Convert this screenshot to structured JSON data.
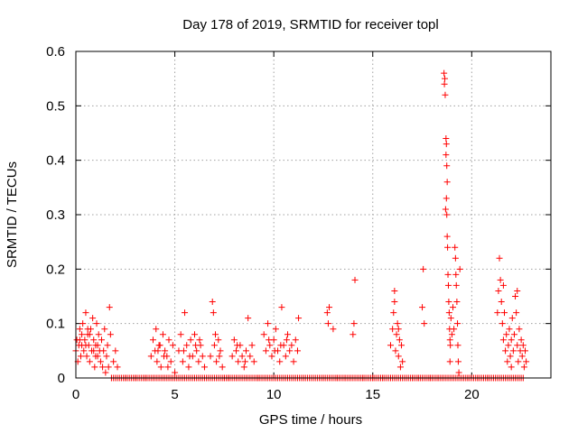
{
  "chart_data": {
    "type": "scatter",
    "title": "Day 178 of 2019, SRMTID for receiver topl",
    "xlabel": "GPS time / hours",
    "ylabel": "SRMTID / TECUs",
    "xlim": [
      0,
      24
    ],
    "ylim": [
      0,
      0.6
    ],
    "x_ticks": [
      0,
      5,
      10,
      15,
      20
    ],
    "x_tick_labels": [
      "0",
      "5",
      "10",
      "15",
      "20"
    ],
    "y_ticks": [
      0,
      0.1,
      0.2,
      0.3,
      0.4,
      0.5,
      0.6
    ],
    "y_tick_labels": [
      "0",
      "0.1",
      "0.2",
      "0.3",
      "0.4",
      "0.5",
      "0.6"
    ],
    "grid": true,
    "marker": "+",
    "color": "#ff0000",
    "series": [
      {
        "name": "SRMTID",
        "points": [
          [
            0.0,
            0.05
          ],
          [
            0.05,
            0.07
          ],
          [
            0.1,
            0.03
          ],
          [
            0.15,
            0.06
          ],
          [
            0.2,
            0.09
          ],
          [
            0.25,
            0.04
          ],
          [
            0.3,
            0.06
          ],
          [
            0.35,
            0.1
          ],
          [
            0.4,
            0.05
          ],
          [
            0.45,
            0.07
          ],
          [
            0.5,
            0.12
          ],
          [
            0.55,
            0.04
          ],
          [
            0.6,
            0.08
          ],
          [
            0.65,
            0.06
          ],
          [
            0.7,
            0.03
          ],
          [
            0.75,
            0.09
          ],
          [
            0.8,
            0.05
          ],
          [
            0.85,
            0.11
          ],
          [
            0.9,
            0.07
          ],
          [
            0.95,
            0.02
          ],
          [
            1.0,
            0.06
          ],
          [
            1.05,
            0.1
          ],
          [
            1.1,
            0.04
          ],
          [
            1.15,
            0.08
          ],
          [
            1.2,
            0.05
          ],
          [
            1.25,
            0.03
          ],
          [
            1.3,
            0.07
          ],
          [
            1.35,
            0.02
          ],
          [
            1.4,
            0.05
          ],
          [
            1.45,
            0.09
          ],
          [
            1.5,
            0.01
          ],
          [
            1.55,
            0.04
          ],
          [
            1.6,
            0.06
          ],
          [
            1.65,
            0.02
          ],
          [
            1.7,
            0.13
          ],
          [
            1.75,
            0.08
          ],
          [
            1.8,
            0.0
          ],
          [
            1.9,
            0.03
          ],
          [
            2.0,
            0.05
          ],
          [
            2.1,
            0.02
          ],
          [
            0.3,
            0.08
          ],
          [
            0.5,
            0.06
          ],
          [
            0.7,
            0.08
          ],
          [
            0.9,
            0.05
          ],
          [
            1.1,
            0.06
          ],
          [
            0.2,
            0.07
          ],
          [
            0.6,
            0.09
          ],
          [
            1.0,
            0.04
          ],
          [
            2.5,
            0.0
          ],
          [
            3.0,
            0.0
          ],
          [
            3.5,
            0.0
          ],
          [
            3.8,
            0.04
          ],
          [
            3.9,
            0.07
          ],
          [
            4.0,
            0.05
          ],
          [
            4.05,
            0.09
          ],
          [
            4.1,
            0.03
          ],
          [
            4.2,
            0.06
          ],
          [
            4.3,
            0.02
          ],
          [
            4.4,
            0.08
          ],
          [
            4.5,
            0.05
          ],
          [
            4.6,
            0.04
          ],
          [
            4.7,
            0.07
          ],
          [
            4.8,
            0.03
          ],
          [
            4.9,
            0.06
          ],
          [
            5.0,
            0.01
          ],
          [
            4.15,
            0.05
          ],
          [
            4.45,
            0.04
          ],
          [
            4.25,
            0.06
          ],
          [
            4.65,
            0.02
          ],
          [
            5.2,
            0.05
          ],
          [
            5.3,
            0.08
          ],
          [
            5.4,
            0.03
          ],
          [
            5.5,
            0.12
          ],
          [
            5.6,
            0.06
          ],
          [
            5.7,
            0.02
          ],
          [
            5.8,
            0.07
          ],
          [
            5.9,
            0.04
          ],
          [
            6.0,
            0.08
          ],
          [
            6.1,
            0.05
          ],
          [
            6.2,
            0.03
          ],
          [
            6.3,
            0.06
          ],
          [
            6.4,
            0.04
          ],
          [
            6.5,
            0.02
          ],
          [
            5.45,
            0.05
          ],
          [
            5.75,
            0.04
          ],
          [
            6.05,
            0.06
          ],
          [
            6.25,
            0.07
          ],
          [
            6.8,
            0.04
          ],
          [
            6.9,
            0.14
          ],
          [
            6.95,
            0.12
          ],
          [
            7.0,
            0.06
          ],
          [
            7.1,
            0.03
          ],
          [
            7.2,
            0.07
          ],
          [
            7.3,
            0.05
          ],
          [
            7.4,
            0.02
          ],
          [
            7.05,
            0.08
          ],
          [
            7.25,
            0.04
          ],
          [
            7.5,
            0.0
          ],
          [
            7.7,
            0.0
          ],
          [
            7.9,
            0.04
          ],
          [
            8.0,
            0.07
          ],
          [
            8.1,
            0.05
          ],
          [
            8.2,
            0.03
          ],
          [
            8.3,
            0.06
          ],
          [
            8.4,
            0.04
          ],
          [
            8.5,
            0.02
          ],
          [
            8.6,
            0.05
          ],
          [
            8.7,
            0.11
          ],
          [
            8.8,
            0.04
          ],
          [
            8.9,
            0.06
          ],
          [
            9.0,
            0.03
          ],
          [
            8.15,
            0.06
          ],
          [
            8.55,
            0.03
          ],
          [
            9.2,
            0.0
          ],
          [
            9.5,
            0.08
          ],
          [
            9.6,
            0.05
          ],
          [
            9.7,
            0.1
          ],
          [
            9.8,
            0.06
          ],
          [
            9.9,
            0.04
          ],
          [
            10.0,
            0.07
          ],
          [
            10.1,
            0.09
          ],
          [
            10.2,
            0.05
          ],
          [
            10.3,
            0.03
          ],
          [
            10.4,
            0.13
          ],
          [
            10.5,
            0.06
          ],
          [
            10.6,
            0.04
          ],
          [
            10.7,
            0.08
          ],
          [
            10.8,
            0.05
          ],
          [
            10.9,
            0.06
          ],
          [
            11.0,
            0.03
          ],
          [
            11.1,
            0.07
          ],
          [
            11.2,
            0.05
          ],
          [
            11.25,
            0.11
          ],
          [
            9.75,
            0.07
          ],
          [
            10.05,
            0.05
          ],
          [
            10.35,
            0.06
          ],
          [
            10.65,
            0.07
          ],
          [
            11.5,
            0.0
          ],
          [
            12.0,
            0.0
          ],
          [
            12.5,
            0.0
          ],
          [
            12.7,
            0.12
          ],
          [
            12.75,
            0.1
          ],
          [
            12.8,
            0.13
          ],
          [
            13.0,
            0.09
          ],
          [
            13.2,
            0.0
          ],
          [
            13.6,
            0.0
          ],
          [
            14.0,
            0.08
          ],
          [
            14.05,
            0.1
          ],
          [
            14.1,
            0.18
          ],
          [
            14.5,
            0.0
          ],
          [
            15.0,
            0.0
          ],
          [
            15.5,
            0.0
          ],
          [
            15.9,
            0.06
          ],
          [
            16.0,
            0.09
          ],
          [
            16.05,
            0.12
          ],
          [
            16.1,
            0.16
          ],
          [
            16.15,
            0.05
          ],
          [
            16.2,
            0.08
          ],
          [
            16.25,
            0.1
          ],
          [
            16.3,
            0.04
          ],
          [
            16.35,
            0.07
          ],
          [
            16.4,
            0.02
          ],
          [
            16.45,
            0.06
          ],
          [
            16.5,
            0.03
          ],
          [
            16.1,
            0.14
          ],
          [
            16.3,
            0.09
          ],
          [
            16.7,
            0.0
          ],
          [
            17.0,
            0.0
          ],
          [
            17.3,
            0.0
          ],
          [
            17.5,
            0.13
          ],
          [
            17.55,
            0.2
          ],
          [
            17.6,
            0.1
          ],
          [
            17.9,
            0.0
          ],
          [
            18.3,
            0.0
          ],
          [
            18.6,
            0.56
          ],
          [
            18.62,
            0.54
          ],
          [
            18.64,
            0.55
          ],
          [
            18.66,
            0.52
          ],
          [
            18.7,
            0.44
          ],
          [
            18.72,
            0.43
          ],
          [
            18.74,
            0.39
          ],
          [
            18.76,
            0.36
          ],
          [
            18.7,
            0.41
          ],
          [
            18.68,
            0.31
          ],
          [
            18.72,
            0.33
          ],
          [
            18.74,
            0.3
          ],
          [
            18.76,
            0.26
          ],
          [
            18.78,
            0.24
          ],
          [
            18.8,
            0.19
          ],
          [
            18.82,
            0.17
          ],
          [
            18.84,
            0.14
          ],
          [
            18.86,
            0.12
          ],
          [
            18.88,
            0.09
          ],
          [
            18.9,
            0.07
          ],
          [
            18.92,
            0.06
          ],
          [
            18.95,
            0.11
          ],
          [
            19.0,
            0.08
          ],
          [
            19.05,
            0.13
          ],
          [
            19.1,
            0.09
          ],
          [
            19.15,
            0.24
          ],
          [
            19.18,
            0.22
          ],
          [
            19.2,
            0.19
          ],
          [
            19.22,
            0.17
          ],
          [
            19.25,
            0.14
          ],
          [
            19.28,
            0.1
          ],
          [
            19.3,
            0.06
          ],
          [
            19.32,
            0.03
          ],
          [
            19.35,
            0.01
          ],
          [
            18.9,
            0.03
          ],
          [
            19.4,
            0.2
          ],
          [
            19.8,
            0.0
          ],
          [
            20.3,
            0.0
          ],
          [
            20.8,
            0.0
          ],
          [
            21.3,
            0.12
          ],
          [
            21.35,
            0.16
          ],
          [
            21.4,
            0.22
          ],
          [
            21.45,
            0.18
          ],
          [
            21.5,
            0.14
          ],
          [
            21.55,
            0.1
          ],
          [
            21.6,
            0.07
          ],
          [
            21.65,
            0.12
          ],
          [
            21.7,
            0.05
          ],
          [
            21.75,
            0.08
          ],
          [
            21.8,
            0.03
          ],
          [
            21.85,
            0.06
          ],
          [
            21.9,
            0.09
          ],
          [
            21.95,
            0.04
          ],
          [
            22.0,
            0.07
          ],
          [
            22.05,
            0.11
          ],
          [
            22.1,
            0.05
          ],
          [
            22.15,
            0.08
          ],
          [
            22.2,
            0.15
          ],
          [
            22.25,
            0.12
          ],
          [
            22.3,
            0.06
          ],
          [
            22.35,
            0.03
          ],
          [
            22.4,
            0.09
          ],
          [
            22.45,
            0.05
          ],
          [
            22.5,
            0.07
          ],
          [
            22.55,
            0.04
          ],
          [
            22.6,
            0.06
          ],
          [
            22.65,
            0.02
          ],
          [
            22.7,
            0.05
          ],
          [
            22.75,
            0.03
          ],
          [
            21.6,
            0.17
          ],
          [
            22.0,
            0.02
          ],
          [
            22.3,
            0.16
          ]
        ]
      }
    ]
  }
}
